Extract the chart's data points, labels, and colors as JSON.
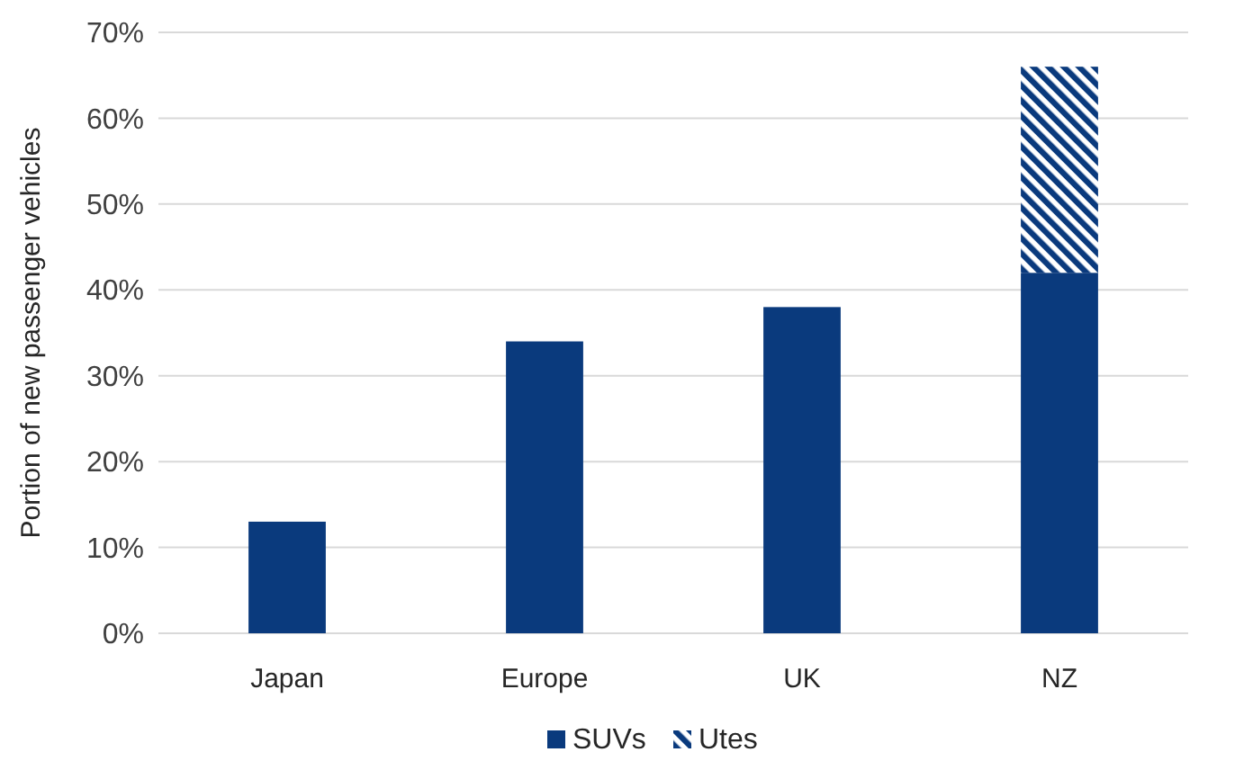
{
  "chart_data": {
    "type": "bar",
    "ylabel": "Portion of new passenger vehicles",
    "categories": [
      "Japan",
      "Europe",
      "UK",
      "NZ"
    ],
    "stacked": true,
    "series": [
      {
        "name": "SUVs",
        "color": "#0a3a7d",
        "values": [
          13,
          34,
          38,
          42
        ]
      },
      {
        "name": "Utes",
        "color": "#0a3a7d",
        "values": [
          0,
          0,
          0,
          24
        ]
      }
    ],
    "ylim": [
      0,
      70
    ],
    "yticks": [
      {
        "value": 0,
        "label": "0%"
      },
      {
        "value": 10,
        "label": "10%"
      },
      {
        "value": 20,
        "label": "20%"
      },
      {
        "value": 30,
        "label": "30%"
      },
      {
        "value": 40,
        "label": "40%"
      },
      {
        "value": 50,
        "label": "50%"
      },
      {
        "value": 60,
        "label": "60%"
      },
      {
        "value": 70,
        "label": "70%"
      }
    ],
    "grid": "y",
    "legend": "bottom"
  }
}
